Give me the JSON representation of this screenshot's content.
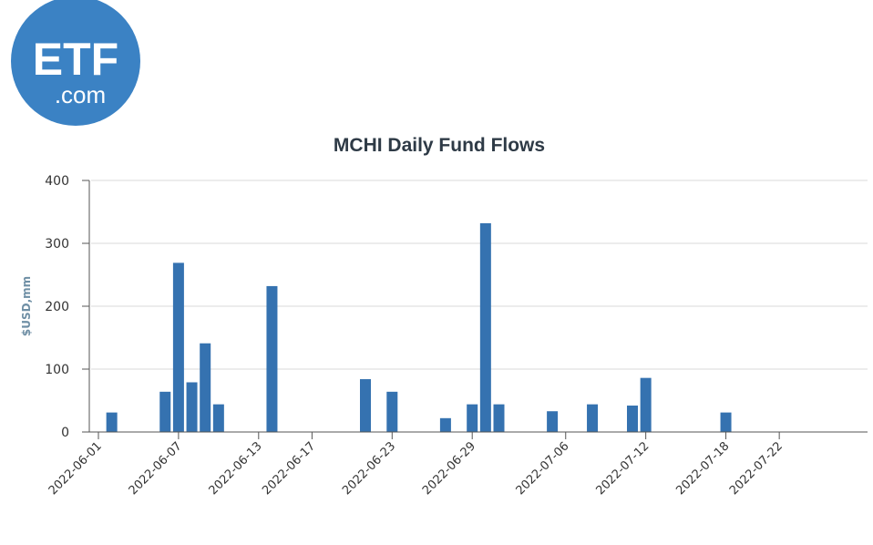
{
  "logo": {
    "main_text": "ETF",
    "sub_text": ".com",
    "color": "#3b82c4"
  },
  "chart_data": {
    "type": "bar",
    "title": "MCHI Daily Fund Flows",
    "xlabel": "",
    "ylabel": "$USD,mm",
    "ylim": [
      0,
      400
    ],
    "yticks": [
      0,
      100,
      200,
      300,
      400
    ],
    "grid": true,
    "bar_color": "#3572b0",
    "xtick_labels": [
      "2022-06-01",
      "2022-06-07",
      "2022-06-13",
      "2022-06-17",
      "2022-06-23",
      "2022-06-29",
      "2022-07-06",
      "2022-07-12",
      "2022-07-18",
      "2022-07-22"
    ],
    "series": [
      {
        "x": [
          "2022-06-02",
          "2022-06-06",
          "2022-06-07",
          "2022-06-08",
          "2022-06-09",
          "2022-06-10",
          "2022-06-14",
          "2022-06-21",
          "2022-06-23",
          "2022-06-27",
          "2022-06-29",
          "2022-06-30",
          "2022-07-01",
          "2022-07-05",
          "2022-07-08",
          "2022-07-11",
          "2022-07-12",
          "2022-07-18"
        ],
        "values": [
          31,
          64,
          269,
          79,
          141,
          44,
          232,
          84,
          64,
          22,
          44,
          332,
          44,
          33,
          44,
          42,
          86,
          31
        ]
      }
    ]
  }
}
